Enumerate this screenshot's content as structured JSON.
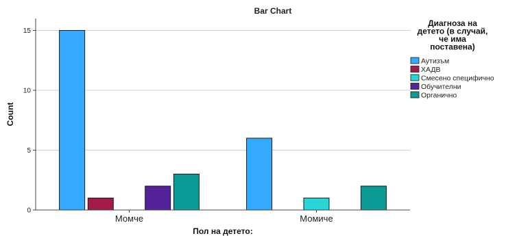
{
  "chart_data": {
    "type": "bar",
    "title": "Bar Chart",
    "xlabel": "Пол на детето:",
    "ylabel": "Count",
    "ylim": [
      0,
      16
    ],
    "yticks": [
      0,
      5,
      10,
      15
    ],
    "grid": true,
    "legend_position": "right",
    "legend_title": [
      "Диагноза на",
      "детето (в случай,",
      "че има",
      "поставена)"
    ],
    "categories": [
      "Момче",
      "Момиче"
    ],
    "series": [
      {
        "name": "Аутизъм",
        "color": "#33aaff",
        "values": [
          15,
          6
        ]
      },
      {
        "name": "ХАДВ",
        "color": "#a31b4b",
        "values": [
          1,
          0
        ]
      },
      {
        "name": "Смесено специфично",
        "color": "#27d7d7",
        "values": [
          0,
          1
        ]
      },
      {
        "name": "Обучителни",
        "color": "#55229a",
        "values": [
          2,
          0
        ]
      },
      {
        "name": "Органично",
        "color": "#0b9a95",
        "values": [
          3,
          2
        ]
      }
    ]
  }
}
